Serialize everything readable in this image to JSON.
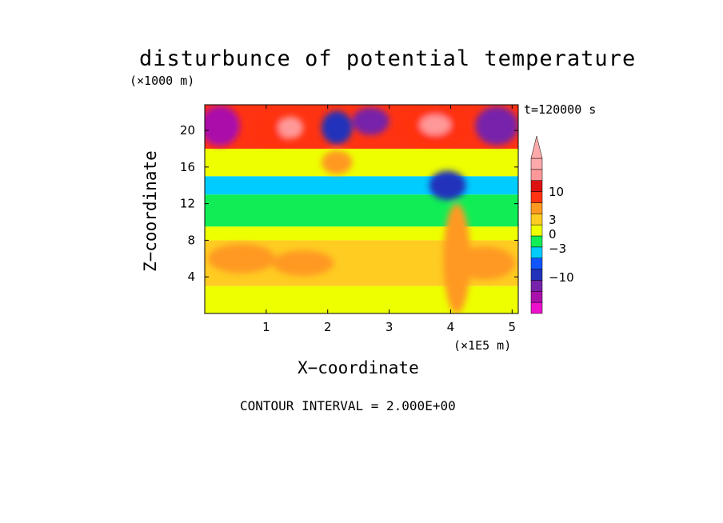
{
  "chart_data": {
    "type": "heatmap",
    "title": "disturbunce of potential temperature",
    "xlabel": "X−coordinate",
    "ylabel": "Z−coordinate",
    "x_unit": "(×1E5 m)",
    "y_unit": "(×1000 m)",
    "time_label": "t=120000 s",
    "contour_interval_label": "CONTOUR INTERVAL = 2.000E+00",
    "xlim": [
      0,
      5.1
    ],
    "ylim": [
      0,
      22.8
    ],
    "x_ticks": [
      1,
      2,
      3,
      4,
      5
    ],
    "y_ticks": [
      4,
      8,
      12,
      16,
      20
    ],
    "colorbar": {
      "colors": [
        "#ee11cc",
        "#aa11aa",
        "#7722aa",
        "#2233bb",
        "#1155ff",
        "#00ccff",
        "#11ee55",
        "#eeff00",
        "#ffcc22",
        "#ff9922",
        "#ff3311",
        "#dd1111",
        "#ff9999",
        "#ffaaaa"
      ],
      "tick_labels": [
        "10",
        "3",
        "0",
        "−3",
        "−10"
      ]
    },
    "layers": [
      {
        "z": [
          0,
          3
        ],
        "value": 0,
        "color": "#eeff00"
      },
      {
        "z": [
          3,
          8
        ],
        "value": 2,
        "color": "#ffcc22"
      },
      {
        "z": [
          8,
          9.5
        ],
        "value": 0,
        "color": "#eeff00"
      },
      {
        "z": [
          9.5,
          13
        ],
        "value": -1,
        "color": "#11ee55"
      },
      {
        "z": [
          13,
          15
        ],
        "value": -2,
        "color": "#00ccff"
      },
      {
        "z": [
          15,
          18
        ],
        "value": 1,
        "color": "#eeff00"
      },
      {
        "z": [
          18,
          22.8
        ],
        "value": 4,
        "color": "#ff3311"
      }
    ],
    "features": [
      {
        "x": 0.25,
        "z": 20.5,
        "rx": 0.32,
        "rz": 2.2,
        "value": -10,
        "color": "#aa11aa"
      },
      {
        "x": 1.1,
        "z": 20,
        "rx": 0.3,
        "rz": 1.6,
        "value": 6,
        "color": "#ff3311"
      },
      {
        "x": 1.4,
        "z": 20.3,
        "rx": 0.2,
        "rz": 1.2,
        "value": 10,
        "color": "#ff9999"
      },
      {
        "x": 2.15,
        "z": 20.3,
        "rx": 0.25,
        "rz": 1.8,
        "value": -6,
        "color": "#2233bb"
      },
      {
        "x": 2.7,
        "z": 21,
        "rx": 0.3,
        "rz": 1.5,
        "value": -8,
        "color": "#7722aa"
      },
      {
        "x": 3.7,
        "z": 20.5,
        "rx": 0.55,
        "rz": 2.1,
        "value": 8,
        "color": "#ff3311"
      },
      {
        "x": 3.75,
        "z": 20.6,
        "rx": 0.25,
        "rz": 1.1,
        "value": 12,
        "color": "#ff9999"
      },
      {
        "x": 4.75,
        "z": 20.5,
        "rx": 0.35,
        "rz": 2.1,
        "value": -8,
        "color": "#7722aa"
      },
      {
        "x": 2.15,
        "z": 16.5,
        "rx": 0.25,
        "rz": 1.3,
        "value": 3,
        "color": "#ff9922"
      },
      {
        "x": 3.95,
        "z": 14,
        "rx": 0.3,
        "rz": 1.6,
        "value": -5,
        "color": "#2233bb"
      },
      {
        "x": 0.6,
        "z": 6,
        "rx": 0.55,
        "rz": 1.6,
        "value": 3,
        "color": "#ff9922"
      },
      {
        "x": 1.6,
        "z": 5.5,
        "rx": 0.5,
        "rz": 1.4,
        "value": 3,
        "color": "#ff9922"
      },
      {
        "x": 4.55,
        "z": 5.5,
        "rx": 0.5,
        "rz": 1.8,
        "value": 3,
        "color": "#ff9922"
      },
      {
        "x": 4.1,
        "z": 6,
        "rx": 0.22,
        "rz": 6,
        "value": 4,
        "color": "#ff9922"
      }
    ]
  }
}
